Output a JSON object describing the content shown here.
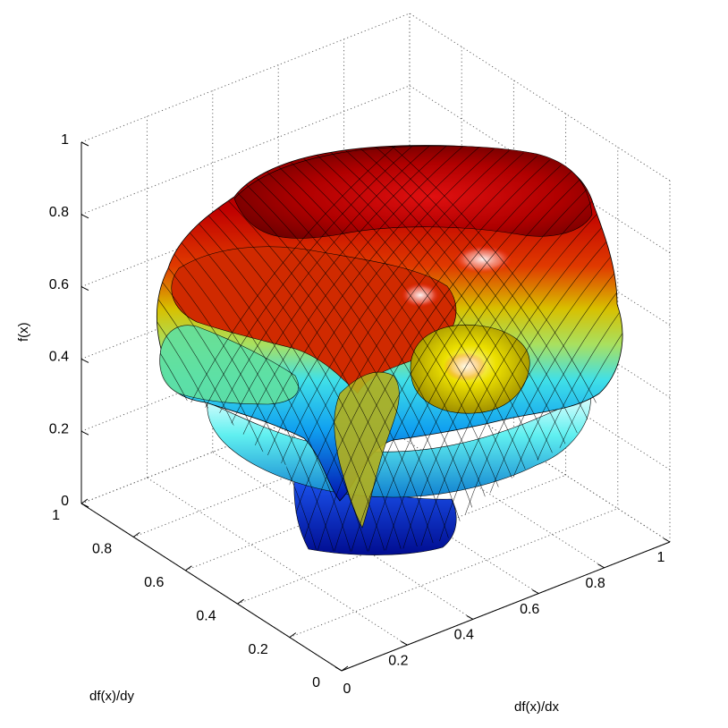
{
  "chart_data": {
    "type": "surface3d",
    "xlabel": "df(x)/dx",
    "ylabel": "df(x)/dy",
    "zlabel": "f(x)",
    "xlim": [
      0,
      1
    ],
    "ylim": [
      0,
      1
    ],
    "zlim": [
      0,
      1
    ],
    "x_ticks": [
      "0",
      "0.2",
      "0.4",
      "0.6",
      "0.8",
      "1"
    ],
    "y_ticks": [
      "0",
      "0.2",
      "0.4",
      "0.6",
      "0.8",
      "1"
    ],
    "z_ticks": [
      "0",
      "0.2",
      "0.4",
      "0.6",
      "0.8",
      "1"
    ],
    "grid": true,
    "colormap": "jet",
    "colors": {
      "low": "#0000c8",
      "cyan": "#40e8e8",
      "green": "#60e080",
      "yellow": "#e8d800",
      "orange": "#e85000",
      "high": "#a00000"
    }
  }
}
